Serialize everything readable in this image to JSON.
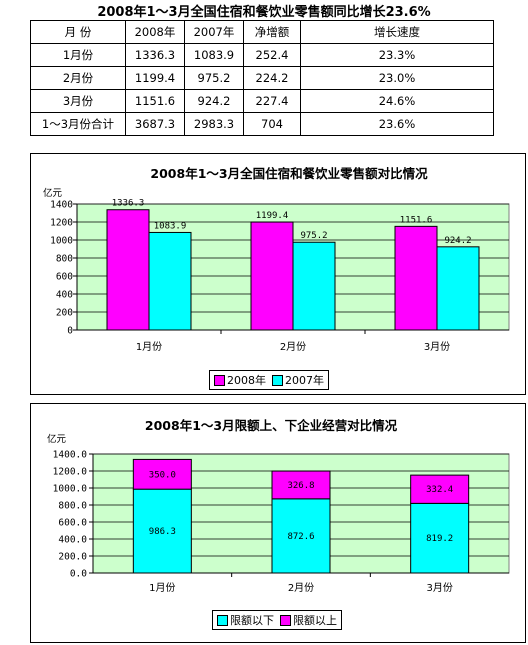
{
  "page_title": "2008年1～3月全国住宿和餐饮业零售额同比增长23.6%",
  "table": {
    "headers": [
      "月 份",
      "2008年",
      "2007年",
      "净增额",
      "增长速度"
    ],
    "rows": [
      [
        "1月份",
        "1336.3",
        "1083.9",
        "252.4",
        "23.3%"
      ],
      [
        "2月份",
        "1199.4",
        "975.2",
        "224.2",
        "23.0%"
      ],
      [
        "3月份",
        "1151.6",
        "924.2",
        "227.4",
        "24.6%"
      ],
      [
        "1～3月份合计",
        "3687.3",
        "2983.3",
        "704",
        "23.6%"
      ]
    ]
  },
  "chart_data": [
    {
      "type": "bar",
      "title": "2008年1～3月全国住宿和餐饮业零售额对比情况",
      "unit_label": "亿元",
      "categories": [
        "1月份",
        "2月份",
        "3月份"
      ],
      "series": [
        {
          "name": "2008年",
          "values": [
            1336.3,
            1199.4,
            1151.6
          ],
          "labels": [
            "1336.3",
            "1199.4",
            "1151.6"
          ],
          "color": "#ff00ff"
        },
        {
          "name": "2007年",
          "values": [
            1083.9,
            975.2,
            924.2
          ],
          "labels": [
            "1083.9",
            "975.2",
            "924.2"
          ],
          "color": "#00ffff"
        }
      ],
      "yticks": [
        "0",
        "200",
        "400",
        "600",
        "800",
        "1000",
        "1200",
        "1400"
      ],
      "ylim": [
        0,
        1400
      ],
      "grid": true,
      "plot_background": "#ccffcc",
      "legend_position": "bottom"
    },
    {
      "type": "bar",
      "stacked": true,
      "title": "2008年1～3月限额上、下企业经营对比情况",
      "unit_label": "亿元",
      "categories": [
        "1月份",
        "2月份",
        "3月份"
      ],
      "series": [
        {
          "name": "限额以下",
          "values": [
            986.3,
            872.6,
            819.2
          ],
          "labels": [
            "986.3",
            "872.6",
            "819.2"
          ],
          "color": "#00ffff"
        },
        {
          "name": "限额以上",
          "values": [
            350.0,
            326.8,
            332.4
          ],
          "labels": [
            "350.0",
            "326.8",
            "332.4"
          ],
          "color": "#ff00ff"
        }
      ],
      "yticks": [
        "0.0",
        "200.0",
        "400.0",
        "600.0",
        "800.0",
        "1000.0",
        "1200.0",
        "1400.0"
      ],
      "ylim": [
        0,
        1400
      ],
      "grid": true,
      "plot_background": "#ccffcc",
      "legend_position": "bottom"
    }
  ]
}
